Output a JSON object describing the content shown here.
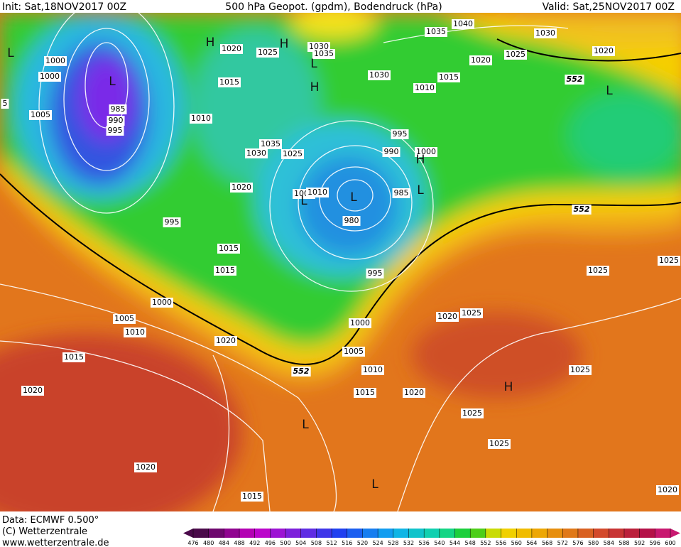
{
  "header": {
    "init": "Init: Sat,18NOV2017 00Z",
    "title": "500 hPa Geopot. (gpdm), Bodendruck (hPa)",
    "valid": "Valid: Sat,25NOV2017 00Z"
  },
  "isobar_labels": [
    1000,
    1000,
    1005,
    985,
    990,
    995,
    5,
    1020,
    1025,
    1030,
    1035,
    1035,
    1040,
    1030,
    1020,
    1025,
    1020,
    1030,
    1015,
    1010,
    1015,
    1010,
    1035,
    1030,
    1025,
    995,
    990,
    1000,
    985,
    1020,
    1005,
    1010,
    980,
    995,
    1015,
    1015,
    995,
    1025,
    1025,
    1000,
    1005,
    1010,
    1020,
    1025,
    1000,
    1020,
    1015,
    1005,
    1010,
    1025,
    1020,
    1015,
    1020,
    1025,
    1025,
    1020,
    1015,
    1020
  ],
  "geopotential_labels": [
    552,
    552,
    552
  ],
  "pressure_centers": [
    "L",
    "L",
    "H",
    "H",
    "L",
    "H",
    "L",
    "L",
    "H",
    "L",
    "L",
    "H",
    "L",
    "L"
  ],
  "footer": {
    "data": "Data: ECMWF  0.500°",
    "copyright": "(C) Wetterzentrale",
    "url": "www.wetterzentrale.de"
  },
  "colorbar": {
    "ticks": [
      476,
      480,
      484,
      488,
      492,
      496,
      500,
      504,
      508,
      512,
      516,
      520,
      524,
      528,
      532,
      536,
      540,
      544,
      548,
      552,
      556,
      560,
      564,
      568,
      572,
      576,
      580,
      584,
      588,
      592,
      596,
      600
    ]
  }
}
